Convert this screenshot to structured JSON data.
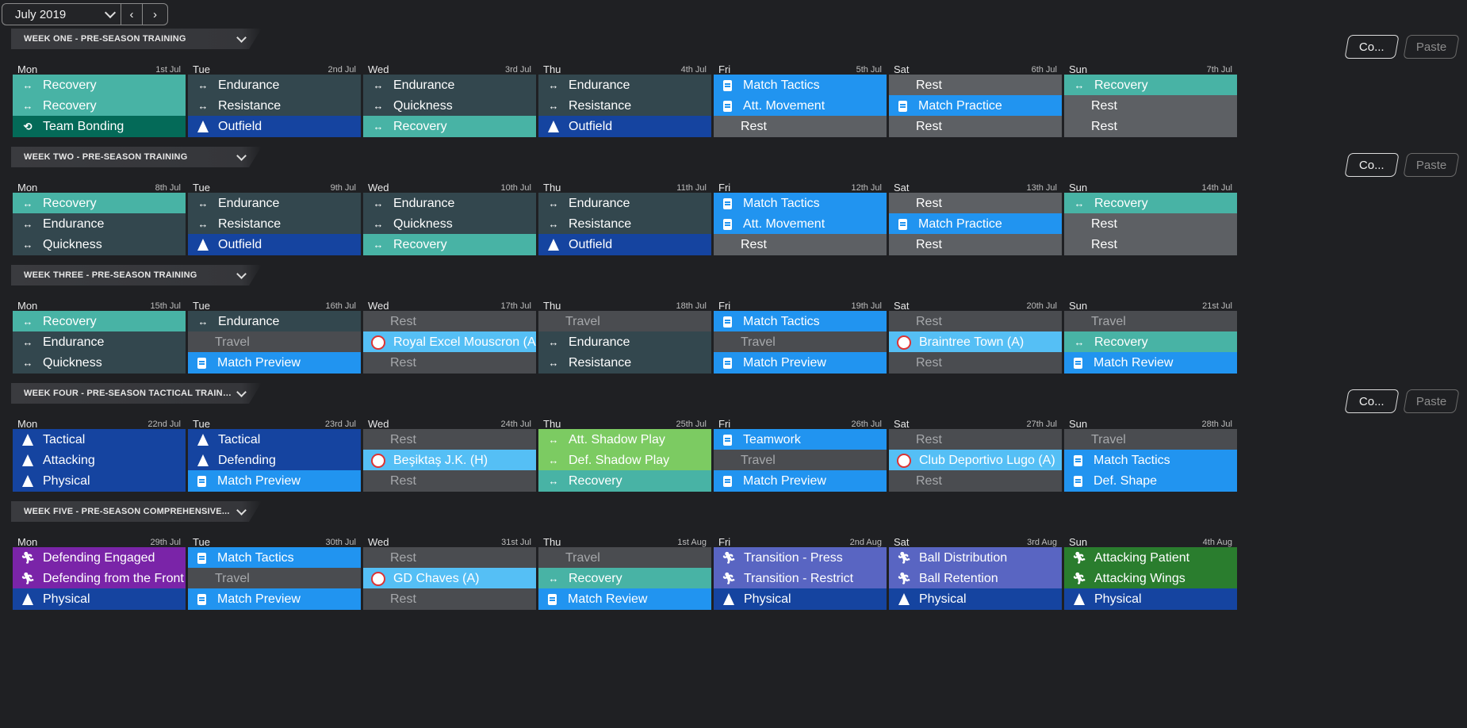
{
  "toolbar": {
    "month": "July 2019",
    "prev": "‹",
    "next": "›"
  },
  "buttons": {
    "copy": "Co...",
    "paste": "Paste"
  },
  "weeks": [
    {
      "title": "WEEK ONE - PRE-SEASON TRAINING",
      "show_copy": true,
      "days": [
        {
          "name": "Mon",
          "date": "1st Jul",
          "sessions": [
            [
              "Recovery",
              "recovery",
              "arrows"
            ],
            [
              "Recovery",
              "recovery",
              "arrows"
            ],
            [
              "Team Bonding",
              "teambond",
              "bond"
            ]
          ]
        },
        {
          "name": "Tue",
          "date": "2nd Jul",
          "sessions": [
            [
              "Endurance",
              "endurance",
              "arrows"
            ],
            [
              "Resistance",
              "endurance",
              "arrows"
            ],
            [
              "Outfield",
              "outfield",
              "cone"
            ]
          ]
        },
        {
          "name": "Wed",
          "date": "3rd Jul",
          "sessions": [
            [
              "Endurance",
              "endurance",
              "arrows"
            ],
            [
              "Quickness",
              "endurance",
              "arrows"
            ],
            [
              "Recovery",
              "recovery",
              "arrows"
            ]
          ]
        },
        {
          "name": "Thu",
          "date": "4th Jul",
          "sessions": [
            [
              "Endurance",
              "endurance",
              "arrows"
            ],
            [
              "Resistance",
              "endurance",
              "arrows"
            ],
            [
              "Outfield",
              "outfield",
              "cone"
            ]
          ]
        },
        {
          "name": "Fri",
          "date": "5th Jul",
          "sessions": [
            [
              "Match Tactics",
              "match",
              "doc"
            ],
            [
              "Att. Movement",
              "match",
              "doc"
            ],
            [
              "Rest",
              "rest",
              "none"
            ]
          ]
        },
        {
          "name": "Sat",
          "date": "6th Jul",
          "sessions": [
            [
              "Rest",
              "rest",
              "none"
            ],
            [
              "Match Practice",
              "match",
              "doc"
            ],
            [
              "Rest",
              "rest",
              "none"
            ]
          ]
        },
        {
          "name": "Sun",
          "date": "7th Jul",
          "sessions": [
            [
              "Recovery",
              "recovery",
              "arrows"
            ],
            [
              "Rest",
              "rest",
              "none"
            ],
            [
              "Rest",
              "rest",
              "none"
            ]
          ]
        }
      ]
    },
    {
      "title": "WEEK TWO - PRE-SEASON TRAINING",
      "show_copy": true,
      "days": [
        {
          "name": "Mon",
          "date": "8th Jul",
          "sessions": [
            [
              "Recovery",
              "recovery",
              "arrows"
            ],
            [
              "Endurance",
              "endurance",
              "arrows"
            ],
            [
              "Quickness",
              "endurance",
              "arrows"
            ]
          ]
        },
        {
          "name": "Tue",
          "date": "9th Jul",
          "sessions": [
            [
              "Endurance",
              "endurance",
              "arrows"
            ],
            [
              "Resistance",
              "endurance",
              "arrows"
            ],
            [
              "Outfield",
              "outfield",
              "cone"
            ]
          ]
        },
        {
          "name": "Wed",
          "date": "10th Jul",
          "sessions": [
            [
              "Endurance",
              "endurance",
              "arrows"
            ],
            [
              "Quickness",
              "endurance",
              "arrows"
            ],
            [
              "Recovery",
              "recovery",
              "arrows"
            ]
          ]
        },
        {
          "name": "Thu",
          "date": "11th Jul",
          "sessions": [
            [
              "Endurance",
              "endurance",
              "arrows"
            ],
            [
              "Resistance",
              "endurance",
              "arrows"
            ],
            [
              "Outfield",
              "outfield",
              "cone"
            ]
          ]
        },
        {
          "name": "Fri",
          "date": "12th Jul",
          "sessions": [
            [
              "Match Tactics",
              "match",
              "doc"
            ],
            [
              "Att. Movement",
              "match",
              "doc"
            ],
            [
              "Rest",
              "rest",
              "none"
            ]
          ]
        },
        {
          "name": "Sat",
          "date": "13th Jul",
          "sessions": [
            [
              "Rest",
              "rest",
              "none"
            ],
            [
              "Match Practice",
              "match",
              "doc"
            ],
            [
              "Rest",
              "rest",
              "none"
            ]
          ]
        },
        {
          "name": "Sun",
          "date": "14th Jul",
          "sessions": [
            [
              "Recovery",
              "recovery",
              "arrows"
            ],
            [
              "Rest",
              "rest",
              "none"
            ],
            [
              "Rest",
              "rest",
              "none"
            ]
          ]
        }
      ]
    },
    {
      "title": "WEEK THREE - PRE-SEASON TRAINING",
      "show_copy": false,
      "days": [
        {
          "name": "Mon",
          "date": "15th Jul",
          "sessions": [
            [
              "Recovery",
              "recovery",
              "arrows"
            ],
            [
              "Endurance",
              "endurance",
              "arrows"
            ],
            [
              "Quickness",
              "endurance",
              "arrows"
            ]
          ]
        },
        {
          "name": "Tue",
          "date": "16th Jul",
          "sessions": [
            [
              "Endurance",
              "endurance",
              "arrows"
            ],
            [
              "Travel",
              "restm",
              "muted"
            ],
            [
              "Match Preview",
              "match",
              "doc"
            ]
          ]
        },
        {
          "name": "Wed",
          "date": "17th Jul",
          "sessions": [
            [
              "Rest",
              "restm",
              "muted"
            ],
            [
              "Royal Excel Mouscron (A)",
              "opp",
              "badge"
            ],
            [
              "Rest",
              "restm",
              "muted"
            ]
          ]
        },
        {
          "name": "Thu",
          "date": "18th Jul",
          "sessions": [
            [
              "Travel",
              "restm",
              "muted"
            ],
            [
              "Endurance",
              "endurance",
              "arrows"
            ],
            [
              "Resistance",
              "endurance",
              "arrows"
            ]
          ]
        },
        {
          "name": "Fri",
          "date": "19th Jul",
          "sessions": [
            [
              "Match Tactics",
              "match",
              "doc"
            ],
            [
              "Travel",
              "restm",
              "muted"
            ],
            [
              "Match Preview",
              "match",
              "doc"
            ]
          ]
        },
        {
          "name": "Sat",
          "date": "20th Jul",
          "sessions": [
            [
              "Rest",
              "restm",
              "muted"
            ],
            [
              "Braintree Town (A)",
              "opp",
              "badge"
            ],
            [
              "Rest",
              "restm",
              "muted"
            ]
          ]
        },
        {
          "name": "Sun",
          "date": "21st Jul",
          "sessions": [
            [
              "Travel",
              "restm",
              "muted"
            ],
            [
              "Recovery",
              "recovery",
              "arrows"
            ],
            [
              "Match Review",
              "match",
              "doc"
            ]
          ]
        }
      ]
    },
    {
      "title": "WEEK FOUR - PRE-SEASON TACTICAL TRAINI...",
      "show_copy": true,
      "days": [
        {
          "name": "Mon",
          "date": "22nd Jul",
          "sessions": [
            [
              "Tactical",
              "outfield",
              "cone"
            ],
            [
              "Attacking",
              "outfield",
              "cone"
            ],
            [
              "Physical",
              "outfield",
              "cone"
            ]
          ]
        },
        {
          "name": "Tue",
          "date": "23rd Jul",
          "sessions": [
            [
              "Tactical",
              "outfield",
              "cone"
            ],
            [
              "Defending",
              "outfield",
              "cone"
            ],
            [
              "Match Preview",
              "match",
              "doc"
            ]
          ]
        },
        {
          "name": "Wed",
          "date": "24th Jul",
          "sessions": [
            [
              "Rest",
              "restm",
              "muted"
            ],
            [
              "Beşiktaş J.K. (H)",
              "opp",
              "badge"
            ],
            [
              "Rest",
              "restm",
              "muted"
            ]
          ]
        },
        {
          "name": "Thu",
          "date": "25th Jul",
          "sessions": [
            [
              "Att. Shadow Play",
              "shadow",
              "arrows"
            ],
            [
              "Def. Shadow Play",
              "shadow",
              "arrows"
            ],
            [
              "Recovery",
              "recovery",
              "arrows"
            ]
          ]
        },
        {
          "name": "Fri",
          "date": "26th Jul",
          "sessions": [
            [
              "Teamwork",
              "match",
              "doc"
            ],
            [
              "Travel",
              "restm",
              "muted"
            ],
            [
              "Match Preview",
              "match",
              "doc"
            ]
          ]
        },
        {
          "name": "Sat",
          "date": "27th Jul",
          "sessions": [
            [
              "Rest",
              "restm",
              "muted"
            ],
            [
              "Club Deportivo Lugo (A)",
              "opp",
              "badge"
            ],
            [
              "Rest",
              "restm",
              "muted"
            ]
          ]
        },
        {
          "name": "Sun",
          "date": "28th Jul",
          "sessions": [
            [
              "Travel",
              "restm",
              "muted"
            ],
            [
              "Match Tactics",
              "match",
              "doc"
            ],
            [
              "Def. Shape",
              "match",
              "doc"
            ]
          ]
        }
      ]
    },
    {
      "title": "WEEK FIVE - PRE-SEASON COMPREHENSIVE...",
      "show_copy": false,
      "days": [
        {
          "name": "Mon",
          "date": "29th Jul",
          "sessions": [
            [
              "Defending Engaged",
              "purple",
              "run"
            ],
            [
              "Defending from the Front",
              "purple",
              "run"
            ],
            [
              "Physical",
              "outfield",
              "cone"
            ]
          ]
        },
        {
          "name": "Tue",
          "date": "30th Jul",
          "sessions": [
            [
              "Match Tactics",
              "match",
              "doc"
            ],
            [
              "Travel",
              "restm",
              "muted"
            ],
            [
              "Match Preview",
              "match",
              "doc"
            ]
          ]
        },
        {
          "name": "Wed",
          "date": "31st Jul",
          "sessions": [
            [
              "Rest",
              "restm",
              "muted"
            ],
            [
              "GD Chaves (A)",
              "opp",
              "badge"
            ],
            [
              "Rest",
              "restm",
              "muted"
            ]
          ]
        },
        {
          "name": "Thu",
          "date": "1st Aug",
          "sessions": [
            [
              "Travel",
              "restm",
              "muted"
            ],
            [
              "Recovery",
              "recovery",
              "arrows"
            ],
            [
              "Match Review",
              "match",
              "doc"
            ]
          ]
        },
        {
          "name": "Fri",
          "date": "2nd Aug",
          "sessions": [
            [
              "Transition - Press",
              "trans",
              "run"
            ],
            [
              "Transition - Restrict",
              "trans",
              "run"
            ],
            [
              "Physical",
              "outfield",
              "cone"
            ]
          ]
        },
        {
          "name": "Sat",
          "date": "3rd Aug",
          "sessions": [
            [
              "Ball Distribution",
              "trans",
              "run"
            ],
            [
              "Ball Retention",
              "trans",
              "run"
            ],
            [
              "Physical",
              "outfield",
              "cone"
            ]
          ]
        },
        {
          "name": "Sun",
          "date": "4th Aug",
          "sessions": [
            [
              "Attacking Patient",
              "green",
              "run"
            ],
            [
              "Attacking Wings",
              "green",
              "run"
            ],
            [
              "Physical",
              "outfield",
              "cone"
            ]
          ]
        }
      ]
    }
  ]
}
